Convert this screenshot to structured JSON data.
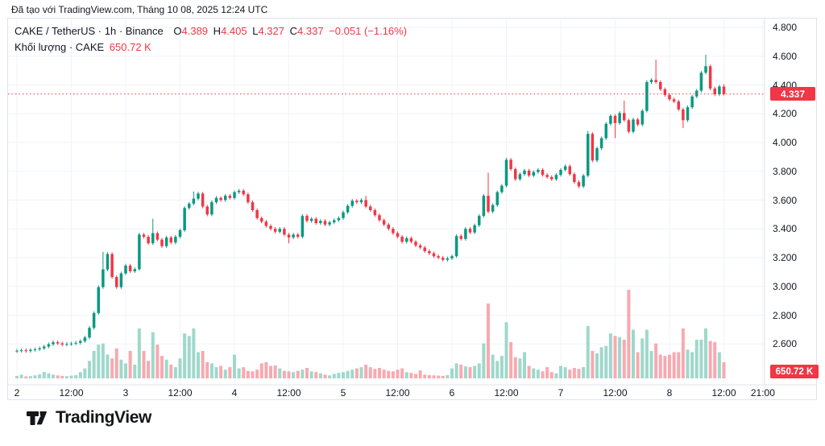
{
  "attribution": "Đã tạo với TradingView.com, Tháng 10 08, 2025 12:24 UTC",
  "header": {
    "title": "CAKE / TetherUS · 1h · Binance",
    "o_label": "O",
    "o_value": "4.389",
    "h_label": "H",
    "h_value": "4.405",
    "l_label": "L",
    "l_value": "4.327",
    "c_label": "C",
    "c_value": "4.337",
    "change": "−0.051 (−1.16%)",
    "volume_label": "Khối lượng · CAKE",
    "volume_value": "650.72 K"
  },
  "tags": {
    "last_price": "4.337",
    "last_volume": "650.72 K"
  },
  "logo": {
    "text": "TradingView"
  },
  "colors": {
    "up": "#089981",
    "down": "#f23645",
    "vol_up": "#9fd8cb",
    "vol_down": "#f8a9b0",
    "grid": "#f0f3fa",
    "border": "#e0e3eb",
    "axis_text": "#131722",
    "tag_bg": "#f23645",
    "tag_text": "#ffffff",
    "last_price_line": "#f23645"
  },
  "chart_data": {
    "type": "candlestick_with_volume",
    "interval": "1h",
    "x_start_label": "2",
    "hours_per_candle": 1,
    "price_axis": {
      "min": 2.6,
      "max": 4.8,
      "step": 0.2,
      "labels": [
        "4.800",
        "4.600",
        "4.400",
        "4.200",
        "4.000",
        "3.800",
        "3.600",
        "3.400",
        "3.200",
        "3.000",
        "2.800",
        "2.600"
      ]
    },
    "time_axis": [
      {
        "t": 0,
        "label": "2"
      },
      {
        "t": 12,
        "label": "12:00"
      },
      {
        "t": 24,
        "label": "3"
      },
      {
        "t": 36,
        "label": "12:00"
      },
      {
        "t": 48,
        "label": "4"
      },
      {
        "t": 60,
        "label": "12:00"
      },
      {
        "t": 72,
        "label": "5"
      },
      {
        "t": 84,
        "label": "12:00"
      },
      {
        "t": 96,
        "label": "6"
      },
      {
        "t": 108,
        "label": "12:00"
      },
      {
        "t": 120,
        "label": "7"
      },
      {
        "t": 132,
        "label": "12:00"
      },
      {
        "t": 144,
        "label": "8"
      },
      {
        "t": 156,
        "label": "12:00"
      },
      {
        "t": 164.6,
        "label": "21:00"
      }
    ],
    "ohlc_last": {
      "open": 4.389,
      "high": 4.405,
      "low": 4.327,
      "close": 4.337,
      "change": -0.051,
      "change_pct": -1.16
    },
    "last_price": 4.337,
    "last_volume_k": 650.72,
    "first_open": 2.55,
    "default_wick": 0.012,
    "wick_overrides": {
      "19": {
        "h": 3.24
      },
      "30": {
        "h": 3.47
      },
      "39": {
        "h": 3.66
      },
      "60": {
        "l": 3.3
      },
      "77": {
        "h": 3.63
      },
      "104": {
        "h": 3.79
      },
      "126": {
        "h": 4.08
      },
      "132": {
        "l": 4.03
      },
      "134": {
        "h": 4.29
      },
      "141": {
        "h": 4.575
      },
      "147": {
        "l": 4.1
      },
      "152": {
        "h": 4.61
      },
      "156": {
        "h": 4.405,
        "l": 4.327
      }
    },
    "closes": [
      2.553,
      2.556,
      2.551,
      2.559,
      2.563,
      2.57,
      2.582,
      2.598,
      2.612,
      2.604,
      2.596,
      2.6,
      2.603,
      2.608,
      2.62,
      2.645,
      2.712,
      2.815,
      2.995,
      3.118,
      3.225,
      3.065,
      2.995,
      3.09,
      3.145,
      3.105,
      3.12,
      3.36,
      3.345,
      3.3,
      3.37,
      3.325,
      3.28,
      3.34,
      3.305,
      3.345,
      3.39,
      3.545,
      3.575,
      3.61,
      3.645,
      3.555,
      3.5,
      3.585,
      3.615,
      3.6,
      3.63,
      3.615,
      3.655,
      3.665,
      3.64,
      3.585,
      3.53,
      3.475,
      3.45,
      3.42,
      3.4,
      3.38,
      3.4,
      3.36,
      3.34,
      3.36,
      3.345,
      3.49,
      3.455,
      3.47,
      3.44,
      3.455,
      3.43,
      3.445,
      3.46,
      3.475,
      3.515,
      3.56,
      3.595,
      3.585,
      3.6,
      3.555,
      3.53,
      3.495,
      3.46,
      3.43,
      3.4,
      3.37,
      3.345,
      3.31,
      3.335,
      3.31,
      3.285,
      3.27,
      3.245,
      3.23,
      3.21,
      3.2,
      3.185,
      3.195,
      3.21,
      3.35,
      3.33,
      3.4,
      3.375,
      3.425,
      3.49,
      3.63,
      3.52,
      3.565,
      3.655,
      3.7,
      3.88,
      3.815,
      3.745,
      3.78,
      3.805,
      3.77,
      3.795,
      3.81,
      3.775,
      3.76,
      3.745,
      3.775,
      3.81,
      3.835,
      3.78,
      3.725,
      3.695,
      3.77,
      4.06,
      3.875,
      3.96,
      4.03,
      4.13,
      4.185,
      4.135,
      4.205,
      4.155,
      4.075,
      4.16,
      4.125,
      4.22,
      4.42,
      4.435,
      4.42,
      4.37,
      4.33,
      4.3,
      4.285,
      4.23,
      4.155,
      4.245,
      4.32,
      4.36,
      4.485,
      4.53,
      4.375,
      4.335,
      4.389,
      4.337
    ],
    "volumes_k": [
      100,
      150,
      80,
      90,
      120,
      160,
      260,
      200,
      150,
      120,
      100,
      90,
      110,
      130,
      250,
      400,
      700,
      1100,
      1350,
      1400,
      950,
      800,
      1200,
      750,
      600,
      1100,
      550,
      2000,
      1100,
      700,
      1850,
      1350,
      900,
      750,
      550,
      450,
      800,
      1800,
      1700,
      2000,
      1050,
      1100,
      650,
      600,
      450,
      500,
      350,
      450,
      950,
      400,
      450,
      300,
      280,
      350,
      600,
      650,
      500,
      520,
      400,
      300,
      280,
      250,
      300,
      350,
      420,
      280,
      250,
      200,
      150,
      120,
      180,
      220,
      250,
      300,
      350,
      400,
      450,
      550,
      450,
      380,
      420,
      350,
      300,
      280,
      350,
      400,
      250,
      220,
      180,
      320,
      150,
      130,
      120,
      110,
      100,
      130,
      400,
      600,
      550,
      480,
      450,
      500,
      600,
      1400,
      3000,
      950,
      700,
      900,
      2250,
      1450,
      850,
      800,
      1050,
      500,
      400,
      350,
      280,
      450,
      250,
      200,
      500,
      450,
      350,
      420,
      380,
      450,
      2100,
      1100,
      1000,
      1250,
      1300,
      1800,
      1700,
      1650,
      1550,
      3550,
      1950,
      1050,
      1600,
      1950,
      1100,
      1400,
      950,
      900,
      950,
      1050,
      1050,
      2000,
      1150,
      1050,
      1550,
      1550,
      2000,
      1500,
      1450,
      1050,
      650.72
    ]
  }
}
